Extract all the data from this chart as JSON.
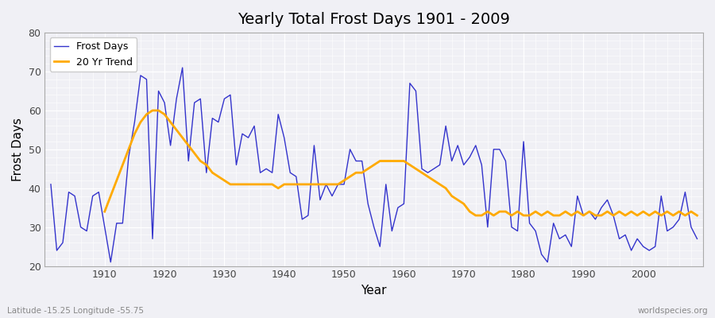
{
  "title": "Yearly Total Frost Days 1901 - 2009",
  "xlabel": "Year",
  "ylabel": "Frost Days",
  "xlim": [
    1900,
    2010
  ],
  "ylim": [
    20,
    80
  ],
  "yticks": [
    20,
    30,
    40,
    50,
    60,
    70,
    80
  ],
  "xticks": [
    1910,
    1920,
    1930,
    1940,
    1950,
    1960,
    1970,
    1980,
    1990,
    2000
  ],
  "bg_color": "#f0f0f5",
  "frost_color": "#3333cc",
  "trend_color": "#ffaa00",
  "legend_labels": [
    "Frost Days",
    "20 Yr Trend"
  ],
  "legend_loc": "upper left",
  "watermark_left": "Latitude -15.25 Longitude -55.75",
  "watermark_right": "worldspecies.org",
  "frost_years_start": 1901,
  "frost_days": [
    41,
    24,
    26,
    39,
    38,
    30,
    29,
    38,
    39,
    30,
    21,
    31,
    31,
    48,
    57,
    69,
    68,
    27,
    65,
    62,
    51,
    63,
    71,
    47,
    62,
    63,
    44,
    58,
    57,
    63,
    64,
    46,
    54,
    53,
    56,
    44,
    45,
    44,
    59,
    53,
    44,
    43,
    32,
    33,
    51,
    37,
    41,
    38,
    41,
    41,
    50,
    47,
    47,
    36,
    30,
    25,
    41,
    29,
    35,
    36,
    67,
    65,
    45,
    44,
    45,
    46,
    56,
    47,
    51,
    46,
    48,
    51,
    46,
    30,
    50,
    50,
    47,
    30,
    29,
    52,
    31,
    29,
    23,
    21,
    31,
    27,
    28,
    25,
    38,
    33,
    34,
    32,
    35,
    37,
    33,
    27,
    28,
    24,
    27,
    25,
    24,
    25,
    38,
    29,
    30,
    32,
    39,
    30,
    27
  ],
  "trend_start_year": 1910,
  "trend_days": [
    34,
    38,
    42,
    46,
    50,
    54,
    57,
    59,
    60,
    60,
    59,
    57,
    55,
    53,
    51,
    49,
    47,
    46,
    44,
    43,
    42,
    41,
    41,
    41,
    41,
    41,
    41,
    41,
    41,
    40,
    41,
    41,
    41,
    41,
    41,
    41,
    41,
    41,
    41,
    41,
    42,
    43,
    44,
    44,
    45,
    46,
    47,
    47,
    47,
    47,
    47,
    46,
    45,
    44,
    43,
    42,
    41,
    40,
    38,
    37,
    36,
    34,
    33,
    33,
    34,
    33,
    34,
    34,
    33,
    34,
    33,
    33,
    34,
    33,
    34,
    33,
    33,
    34,
    33,
    34,
    33,
    34,
    33,
    33,
    34,
    33,
    34,
    33,
    34,
    33,
    34,
    33,
    34,
    33,
    34,
    33,
    34,
    33,
    34,
    33
  ]
}
